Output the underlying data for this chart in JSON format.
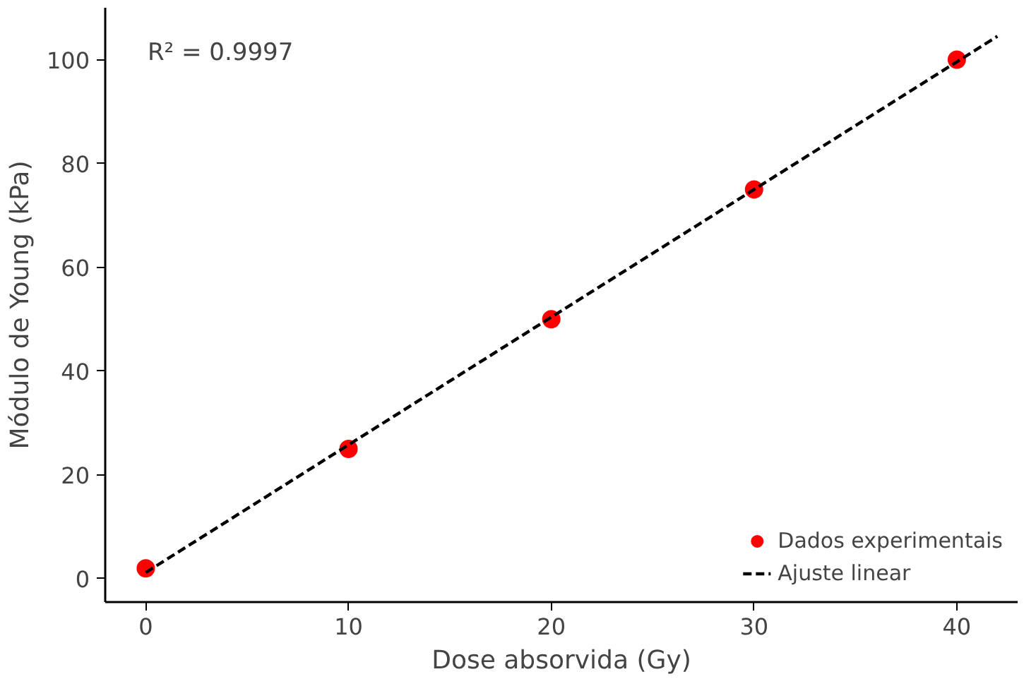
{
  "chart_data": {
    "type": "scatter",
    "xlabel": "Dose absorvida (Gy)",
    "ylabel": "Módulo de Young (kPa)",
    "x": [
      0,
      10,
      20,
      30,
      40
    ],
    "series": [
      {
        "name": "Dados experimentais",
        "color": "#ff0000",
        "values": [
          2,
          25,
          50,
          75,
          100
        ],
        "marker": "circle"
      },
      {
        "name": "Ajuste linear",
        "type": "line",
        "color": "#000000",
        "x": [
          0,
          42
        ],
        "values": [
          1.2,
          104.5
        ],
        "line_style": "dashed",
        "marker": "none"
      }
    ],
    "xlim": [
      -2,
      43
    ],
    "ylim": [
      -4.5,
      110
    ],
    "xticks": [
      0,
      10,
      20,
      30,
      40
    ],
    "yticks": [
      0,
      20,
      40,
      60,
      80,
      100
    ],
    "annotations": [
      "R² = 0.9997"
    ],
    "legend": "bottom right",
    "grid": false
  }
}
